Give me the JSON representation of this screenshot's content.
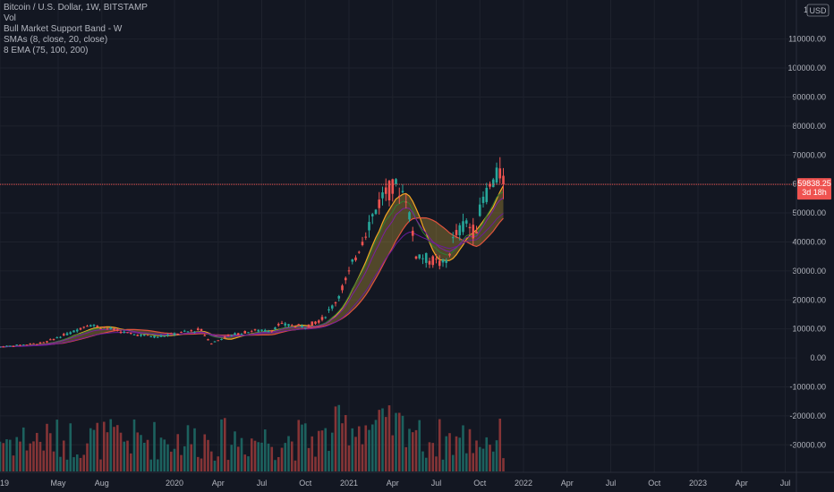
{
  "legend": {
    "symbol": "Bitcoin / U.S. Dollar, 1W, BITSTAMP",
    "vol": "Vol",
    "band": "Bull Market Support Band - W",
    "smas": "SMAs (8, close, 20, close)",
    "ema": "8 EMA (75, 100, 200)"
  },
  "price_badge": {
    "value": "59838.25",
    "countdown": "3d 18h"
  },
  "currency_label": "USD",
  "colors": {
    "background": "#131722",
    "up": "#26a69a",
    "down": "#ef5350",
    "grid": "#1e222d",
    "axis_text": "#b2b5be",
    "band_fill": "#c5a03a",
    "sma8": "#f5a623",
    "sma20": "#e0533d",
    "ema75": "#2e7d32",
    "ema100": "#7b1fa2",
    "ema200": "#6a1b9a"
  },
  "chart_data": {
    "type": "candlestick",
    "interval": "1W",
    "y_ticks": [
      110000,
      100000,
      90000,
      80000,
      70000,
      60000,
      50000,
      40000,
      30000,
      20000,
      10000,
      0,
      -10000,
      -20000,
      -30000
    ],
    "y_tick_labels": [
      "110000.00",
      "100000.00",
      "90000.00",
      "80000.00",
      "70000.00",
      "60000.00",
      "50000.00",
      "40000.00",
      "30000.00",
      "20000.00",
      "10000.00",
      "0.00",
      "-10000.00",
      "-20000.00",
      "-30000.00"
    ],
    "top_tick_label": "12",
    "ylim": [
      -33000,
      121000
    ],
    "x_labels": [
      {
        "label": "19",
        "date": "2019-01"
      },
      {
        "label": "May",
        "date": "2019-05"
      },
      {
        "label": "Aug",
        "date": "2019-08"
      },
      {
        "label": "2020",
        "date": "2020-01"
      },
      {
        "label": "Apr",
        "date": "2020-04"
      },
      {
        "label": "Jul",
        "date": "2020-07"
      },
      {
        "label": "Oct",
        "date": "2020-10"
      },
      {
        "label": "2021",
        "date": "2021-01"
      },
      {
        "label": "Apr",
        "date": "2021-04"
      },
      {
        "label": "Jul",
        "date": "2021-07"
      },
      {
        "label": "Oct",
        "date": "2021-10"
      },
      {
        "label": "2022",
        "date": "2022-01"
      },
      {
        "label": "Apr",
        "date": "2022-04"
      },
      {
        "label": "Jul",
        "date": "2022-07"
      },
      {
        "label": "Oct",
        "date": "2022-10"
      },
      {
        "label": "2023",
        "date": "2023-01"
      },
      {
        "label": "Apr",
        "date": "2023-04"
      },
      {
        "label": "Jul",
        "date": "2023-07"
      }
    ],
    "last_price": 59838.25
  }
}
